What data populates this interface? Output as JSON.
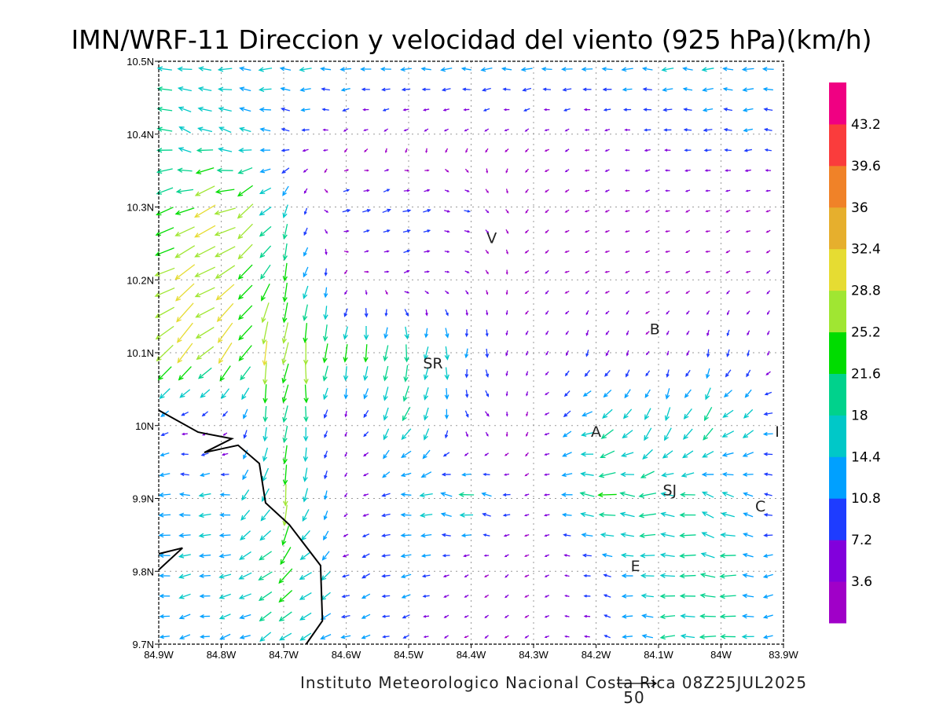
{
  "title": "IMN/WRF-11 Direccion y velocidad del viento (925 hPa)(km/h)",
  "footer": "Instituto Meteorologico Nacional Costa Rica 08Z25JUL2025",
  "reference_vector": {
    "label": "50",
    "speed": 50
  },
  "axes": {
    "lon_range": [
      -84.9,
      -83.9
    ],
    "lat_range": [
      9.7,
      10.5
    ],
    "x_ticks": [
      "84.9W",
      "84.8W",
      "84.7W",
      "84.6W",
      "84.5W",
      "84.4W",
      "84.3W",
      "84.2W",
      "84.1W",
      "84W",
      "83.9W"
    ],
    "y_ticks": [
      "9.7N",
      "9.8N",
      "9.9N",
      "10N",
      "10.1N",
      "10.2N",
      "10.3N",
      "10.4N",
      "10.5N"
    ]
  },
  "colorbar": {
    "labels": [
      "3.6",
      "7.2",
      "10.8",
      "14.4",
      "18",
      "21.6",
      "25.2",
      "28.8",
      "32.4",
      "36",
      "39.6",
      "43.2"
    ],
    "colors": [
      "#a000c8",
      "#8200dc",
      "#1e3cff",
      "#00a0ff",
      "#00c8c8",
      "#00d28c",
      "#00dc00",
      "#a0e632",
      "#e6dc32",
      "#e6af2d",
      "#f08228",
      "#fa3c3c",
      "#f00082"
    ]
  },
  "places": [
    {
      "label": "V",
      "lon": -84.367,
      "lat": 10.258
    },
    {
      "label": "B",
      "lon": -84.106,
      "lat": 10.133
    },
    {
      "label": "SR",
      "lon": -84.461,
      "lat": 10.086
    },
    {
      "label": "A",
      "lon": -84.2,
      "lat": 9.992
    },
    {
      "label": "I",
      "lon": -83.91,
      "lat": 9.992
    },
    {
      "label": "SJ",
      "lon": -84.082,
      "lat": 9.912
    },
    {
      "label": "C",
      "lon": -83.937,
      "lat": 9.89
    },
    {
      "label": "E",
      "lon": -84.137,
      "lat": 9.808
    }
  ],
  "coastlines": [
    [
      [
        -84.9,
        10.021
      ],
      [
        -84.837,
        9.991
      ],
      [
        -84.783,
        9.982
      ],
      [
        -84.827,
        9.963
      ],
      [
        -84.773,
        9.973
      ],
      [
        -84.739,
        9.948
      ],
      [
        -84.729,
        9.894
      ],
      [
        -84.691,
        9.864
      ],
      [
        -84.641,
        9.808
      ],
      [
        -84.638,
        9.732
      ],
      [
        -84.664,
        9.7
      ]
    ],
    [
      [
        -84.9,
        9.824
      ],
      [
        -84.862,
        9.832
      ],
      [
        -84.9,
        9.802
      ]
    ]
  ],
  "wind_field": {
    "units": "km/h",
    "lons": [
      -84.9,
      -84.8,
      -84.7,
      -84.6,
      -84.5,
      -84.4,
      -84.3,
      -84.2,
      -84.1,
      -84.0,
      -83.9
    ],
    "lats": [
      10.5,
      10.4,
      10.3,
      10.2,
      10.1,
      10.0,
      9.9,
      9.8,
      9.7
    ],
    "u": [
      [
        -18,
        -16,
        -15,
        -14,
        -14,
        -14,
        -14,
        -14,
        -14,
        -14,
        -14
      ],
      [
        -16,
        -16,
        -10,
        -4,
        -3,
        -3,
        -3,
        -4,
        -8,
        -10,
        -10
      ],
      [
        -20,
        -28,
        -8,
        10,
        10,
        6,
        -2,
        -3,
        -3,
        -3,
        -3
      ],
      [
        -25,
        -25,
        -5,
        -2,
        6,
        3,
        -3,
        -3,
        -3,
        -3,
        -3
      ],
      [
        -20,
        -20,
        -3,
        -3,
        -2,
        0,
        -2,
        -3,
        -2,
        -2,
        -2
      ],
      [
        -8,
        -3,
        -2,
        -2,
        -10,
        6,
        -2,
        -16,
        -6,
        -14,
        -12
      ],
      [
        -14,
        -14,
        -4,
        -2,
        -14,
        -18,
        -2,
        -22,
        -20,
        -14,
        -8
      ],
      [
        -14,
        -14,
        -18,
        -8,
        -12,
        -3,
        -3,
        -8,
        -18,
        -20,
        -8
      ],
      [
        -12,
        -12,
        -14,
        -12,
        -6,
        -3,
        -3,
        -6,
        -16,
        -20,
        -8
      ]
    ],
    "v": [
      [
        2,
        0,
        0,
        0,
        0,
        0,
        0,
        0,
        0,
        0,
        0
      ],
      [
        6,
        6,
        2,
        -2,
        -2,
        -2,
        -2,
        -1,
        0,
        0,
        0
      ],
      [
        -8,
        -12,
        -14,
        3,
        3,
        -3,
        -2,
        -1,
        -1,
        -1,
        -1
      ],
      [
        -15,
        -15,
        -22,
        -2,
        2,
        -2,
        -2,
        -1,
        -1,
        -1,
        -2
      ],
      [
        -22,
        -20,
        -30,
        -22,
        -20,
        -12,
        -3,
        -8,
        -3,
        -10,
        -3
      ],
      [
        -2,
        -2,
        -22,
        -3,
        -18,
        -6,
        -2,
        -8,
        -18,
        -14,
        0
      ],
      [
        0,
        0,
        -26,
        -3,
        0,
        4,
        -2,
        4,
        0,
        8,
        0
      ],
      [
        -2,
        -2,
        -16,
        -4,
        -2,
        -2,
        -2,
        2,
        0,
        2,
        -2
      ],
      [
        -3,
        -3,
        -10,
        -3,
        -2,
        -2,
        -2,
        2,
        0,
        0,
        -2
      ]
    ]
  }
}
